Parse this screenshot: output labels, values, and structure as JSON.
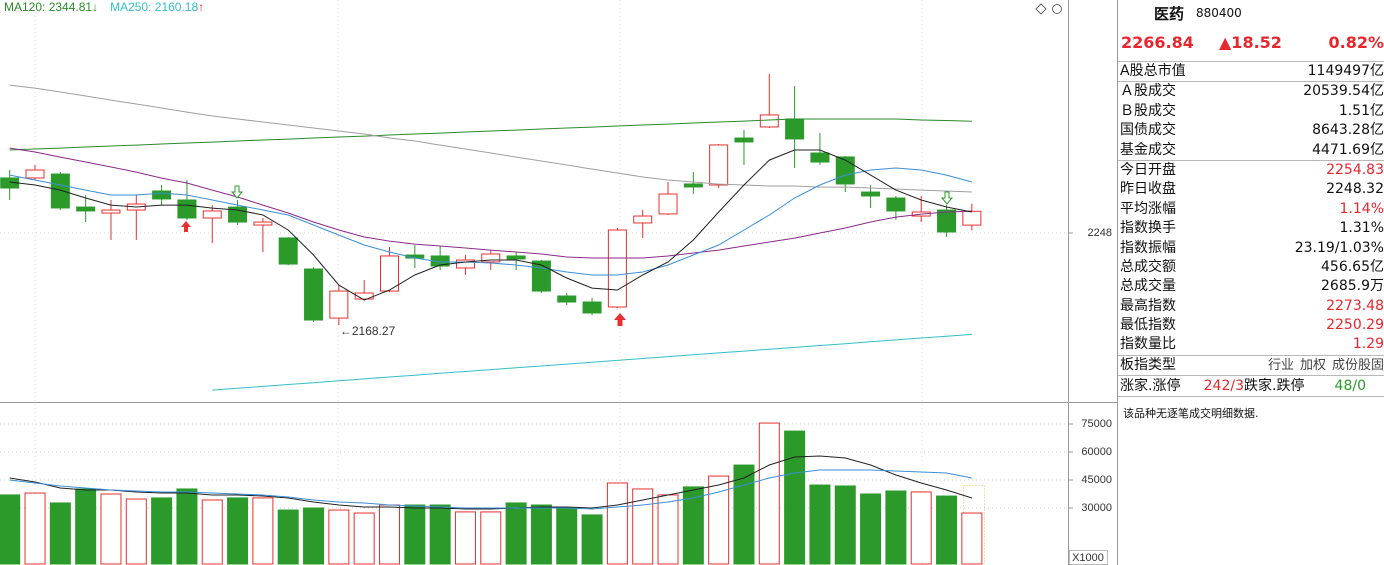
{
  "chart_data": [
    {
      "type": "candlestick",
      "categories": [
        null,
        null,
        null,
        null,
        null,
        null,
        null,
        null,
        null,
        null,
        null,
        null,
        null,
        null,
        null,
        null,
        null,
        null,
        null,
        null,
        null,
        null,
        null,
        null,
        null,
        null,
        null,
        null,
        null,
        null,
        null,
        null,
        null,
        null,
        null,
        null,
        null,
        null,
        null
      ],
      "open": [
        2295.7,
        2295.7,
        2299.1,
        2270.5,
        2265.3,
        2267.9,
        2284.4,
        2276.6,
        2261.0,
        2270.5,
        2254.9,
        2243.7,
        2216.8,
        2174.3,
        2190.8,
        2197.7,
        2228.9,
        2228.1,
        2217.7,
        2222.9,
        2228.1,
        2223.7,
        2193.4,
        2188.2,
        2183.9,
        2256.7,
        2264.5,
        2290.5,
        2289.6,
        2330.3,
        2339.9,
        2346.8,
        2317.3,
        2313.9,
        2283.5,
        2278.3,
        2262.7,
        2267.9,
        2254.83
      ],
      "high": [
        2302.6,
        2306.9,
        2300.9,
        2280.9,
        2276.6,
        2280.9,
        2289.6,
        2293.9,
        2272.3,
        2276.6,
        2261.0,
        2244.5,
        2218.5,
        2202.9,
        2207.3,
        2235.9,
        2237.6,
        2236.7,
        2228.9,
        2233.3,
        2231.5,
        2224.6,
        2196.0,
        2191.7,
        2252.3,
        2267.9,
        2292.2,
        2300.9,
        2325.1,
        2337.3,
        2385.8,
        2375.4,
        2334.7,
        2314.7,
        2289.6,
        2280.1,
        2280.1,
        2272.3,
        2273.48
      ],
      "low": [
        2276.6,
        2293.9,
        2267.9,
        2257.5,
        2241.9,
        2241.9,
        2272.3,
        2259.3,
        2239.3,
        2254.9,
        2231.5,
        2220.3,
        2170.9,
        2168.27,
        2189.9,
        2196.9,
        2217.7,
        2215.9,
        2211.6,
        2215.9,
        2215.9,
        2196.0,
        2185.6,
        2176.9,
        2183.0,
        2243.7,
        2263.6,
        2281.8,
        2287.0,
        2306.9,
        2339.0,
        2304.3,
        2306.9,
        2283.5,
        2269.7,
        2259.3,
        2257.5,
        2244.5,
        2250.29
      ],
      "close": [
        2287.0,
        2302.6,
        2269.7,
        2267.1,
        2267.9,
        2273.1,
        2277.5,
        2261.0,
        2267.1,
        2257.5,
        2257.5,
        2221.1,
        2172.6,
        2197.7,
        2196.0,
        2228.1,
        2226.3,
        2219.4,
        2224.6,
        2229.8,
        2225.5,
        2197.7,
        2188.2,
        2178.7,
        2250.6,
        2262.7,
        2281.8,
        2287.9,
        2324.3,
        2326.9,
        2350.3,
        2329.5,
        2309.5,
        2290.5,
        2280.1,
        2267.1,
        2266.2,
        2248.9,
        2266.84
      ],
      "up_color": "#e8302e",
      "down_color": "#2b9a2b",
      "series": [
        {
          "name": "MA120: 2344.81",
          "arrow": "↓",
          "arrow_color": "#2b9a2b",
          "color": "#2a8a2a",
          "values": [
            2319.9,
            2320.8,
            2321.6,
            2322.5,
            2323.4,
            2324.2,
            2325.1,
            2326.0,
            2326.8,
            2327.7,
            2328.6,
            2329.4,
            2330.3,
            2331.2,
            2332.0,
            2332.9,
            2333.8,
            2334.6,
            2335.5,
            2336.4,
            2337.2,
            2338.1,
            2339.0,
            2339.8,
            2340.7,
            2341.6,
            2342.4,
            2343.3,
            2344.2,
            2345.0,
            2345.9,
            2346.8,
            2346.8,
            2346.8,
            2346.8,
            2346.8,
            2345.9,
            2345.5,
            2344.81
          ]
        },
        {
          "name": "MA250: 2160.18",
          "arrow": "↑",
          "arrow_color": "#e8302e",
          "color": "#33bfc9",
          "values": [
            null,
            null,
            null,
            null,
            null,
            null,
            null,
            null,
            2111.9,
            2113.5,
            2115.1,
            2116.7,
            2118.3,
            2119.9,
            2121.6,
            2123.2,
            2124.8,
            2126.4,
            2128.0,
            2129.6,
            2131.2,
            2132.8,
            2134.4,
            2136.0,
            2137.6,
            2139.3,
            2140.9,
            2142.5,
            2144.1,
            2145.7,
            2147.3,
            2148.9,
            2150.5,
            2152.1,
            2153.7,
            2155.4,
            2157.0,
            2158.6,
            2160.18
          ]
        },
        {
          "color": "#a0a0a0",
          "values": [
            2376.2,
            2373.6,
            2370.2,
            2366.7,
            2363.2,
            2359.8,
            2356.3,
            2352.8,
            2349.4,
            2346.8,
            2344.2,
            2341.6,
            2339.0,
            2336.4,
            2333.8,
            2330.3,
            2327.7,
            2324.2,
            2320.8,
            2317.3,
            2313.8,
            2310.4,
            2306.9,
            2303.4,
            2300.0,
            2296.5,
            2293.9,
            2292.2,
            2290.4,
            2289.6,
            2288.7,
            2288.7,
            2287.8,
            2287.8,
            2287.0,
            2286.1,
            2285.2,
            2284.4,
            2283.5
          ]
        },
        {
          "color": "#8b2a8b",
          "values": [
            2321.6,
            2318.2,
            2313.8,
            2309.5,
            2305.2,
            2300.8,
            2295.6,
            2291.3,
            2285.2,
            2279.2,
            2272.2,
            2265.3,
            2257.5,
            2250.6,
            2244.5,
            2241.0,
            2238.4,
            2236.7,
            2235.0,
            2233.2,
            2231.5,
            2229.8,
            2227.2,
            2226.3,
            2226.3,
            2226.3,
            2228.1,
            2230.7,
            2233.2,
            2236.7,
            2240.2,
            2243.6,
            2248.0,
            2252.3,
            2257.5,
            2261.8,
            2264.4,
            2266.2,
            2267.0
          ]
        },
        {
          "color": "#3a8fd8",
          "values": [
            2298.2,
            2293.9,
            2289.6,
            2285.2,
            2280.9,
            2280.9,
            2282.6,
            2280.9,
            2276.6,
            2272.2,
            2267.9,
            2263.6,
            2254.9,
            2246.2,
            2237.6,
            2231.5,
            2226.3,
            2222.9,
            2222.9,
            2222.0,
            2220.3,
            2217.7,
            2214.2,
            2211.6,
            2211.6,
            2214.2,
            2220.3,
            2228.9,
            2237.6,
            2250.6,
            2263.6,
            2278.3,
            2289.6,
            2298.2,
            2302.6,
            2304.3,
            2302.6,
            2298.2,
            2292.2
          ]
        },
        {
          "color": "#222222",
          "values": [
            2292.2,
            2289.6,
            2285.2,
            2278.3,
            2272.2,
            2270.5,
            2272.2,
            2272.2,
            2269.6,
            2267.9,
            2263.6,
            2250.6,
            2228.9,
            2202.9,
            2189.9,
            2198.6,
            2211.6,
            2220.3,
            2222.9,
            2224.6,
            2224.6,
            2220.3,
            2209.0,
            2200.3,
            2198.6,
            2211.6,
            2222.9,
            2241.9,
            2266.2,
            2289.6,
            2311.2,
            2319.9,
            2319.9,
            2311.2,
            2298.2,
            2285.2,
            2276.6,
            2270.5,
            2266.2
          ]
        }
      ],
      "ylim": [
        2103.3,
        2449.9
      ],
      "yticks": [
        2248
      ],
      "grid": true,
      "low_label": "←2168.27"
    },
    {
      "type": "bar",
      "categories": [
        null,
        null,
        null,
        null,
        null,
        null,
        null,
        null,
        null,
        null,
        null,
        null,
        null,
        null,
        null,
        null,
        null,
        null,
        null,
        null,
        null,
        null,
        null,
        null,
        null,
        null,
        null,
        null,
        null,
        null,
        null,
        null,
        null,
        null,
        null,
        null,
        null,
        null,
        null
      ],
      "values": [
        37000,
        38000,
        32700,
        40200,
        37500,
        34800,
        35400,
        40200,
        34300,
        35400,
        35400,
        28900,
        30000,
        28900,
        27300,
        31600,
        31600,
        31600,
        27900,
        27900,
        32700,
        31600,
        30000,
        26300,
        43400,
        40200,
        37000,
        41300,
        47100,
        53000,
        75500,
        71200,
        42300,
        41800,
        37500,
        39100,
        38600,
        36400,
        27300
      ],
      "up_color": "#e8302e",
      "down_color": "#2b9a2b",
      "series": [
        {
          "color": "#222222",
          "values": [
            46070,
            43930,
            40710,
            39640,
            39640,
            38570,
            38030,
            38030,
            36960,
            36960,
            36430,
            35360,
            33210,
            31610,
            30530,
            30530,
            30000,
            30000,
            29460,
            29460,
            30000,
            30530,
            30530,
            30000,
            31610,
            34280,
            36960,
            39640,
            42320,
            46070,
            53030,
            57320,
            57860,
            56780,
            53030,
            47680,
            43390,
            39640,
            35360
          ]
        },
        {
          "color": "#3a8fd8",
          "values": [
            45000,
            43390,
            41790,
            40710,
            39640,
            39110,
            38570,
            38570,
            38030,
            37500,
            36960,
            35890,
            34280,
            33210,
            32680,
            31610,
            31070,
            30530,
            30000,
            30000,
            30000,
            30000,
            30000,
            29460,
            30530,
            31610,
            33210,
            35360,
            38570,
            42320,
            46070,
            48750,
            50360,
            50360,
            50360,
            49820,
            49290,
            48750,
            46070
          ]
        }
      ],
      "ylim": [
        0,
        86250
      ],
      "yticks": [
        30000,
        45000,
        60000,
        75000
      ],
      "grid": true,
      "unit_label": "X1000"
    }
  ],
  "quote_panel": {
    "name": "医药",
    "code": "880400",
    "price": "2266.84",
    "change": "▲18.52",
    "change_pct": "0.82%",
    "color": "#e8262d",
    "groups": [
      [
        {
          "label": "A股总市值",
          "value": "1149497亿"
        }
      ],
      [
        {
          "label": "Ａ股成交",
          "value": "20539.54亿"
        },
        {
          "label": "Ｂ股成交",
          "value": "1.51亿"
        },
        {
          "label": "国债成交",
          "value": "8643.28亿"
        },
        {
          "label": "基金成交",
          "value": "4471.69亿"
        }
      ],
      [
        {
          "label": "今日开盘",
          "value": "2254.83",
          "color": "#e8262d"
        },
        {
          "label": "昨日收盘",
          "value": "2248.32"
        },
        {
          "label": "平均涨幅",
          "value": "1.14%",
          "color": "#e8262d"
        },
        {
          "label": "指数换手",
          "value": "1.31%"
        },
        {
          "label": "指数振幅",
          "value": "23.19/1.03%"
        },
        {
          "label": "总成交额",
          "value": "456.65亿"
        },
        {
          "label": "总成交量",
          "value": "2685.9万"
        },
        {
          "label": "最高指数",
          "value": "2273.48",
          "color": "#e8262d"
        },
        {
          "label": "最低指数",
          "value": "2250.29",
          "color": "#e8262d"
        },
        {
          "label": "指数量比",
          "value": "1.29",
          "color": "#e8262d"
        }
      ]
    ],
    "board_type": {
      "label": "板指类型",
      "options": [
        "行业",
        "加权",
        "成份股固"
      ]
    },
    "breadth": [
      {
        "label": "涨家.涨停",
        "value": "242/3",
        "color": "#e8262d"
      },
      {
        "label": "跌家.跌停",
        "value": "48/0",
        "color": "#2b9a2b"
      }
    ],
    "note": "该品种无逐笔成交明细数据."
  }
}
